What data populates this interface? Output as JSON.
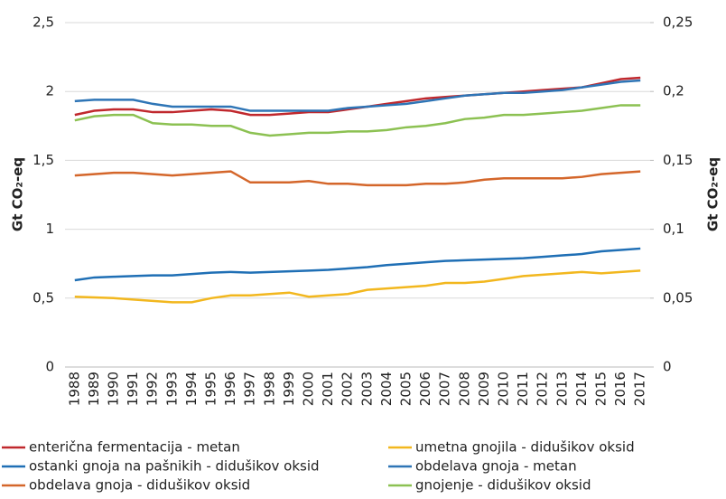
{
  "chart_data": {
    "type": "line",
    "y_label": "Gt CO₂-eq",
    "y2_label": "Gt CO₂-eq",
    "categories": [
      "1988",
      "1989",
      "1990",
      "1991",
      "1992",
      "1993",
      "1994",
      "1995",
      "1996",
      "1997",
      "1998",
      "1999",
      "2000",
      "2001",
      "2002",
      "2003",
      "2004",
      "2005",
      "2006",
      "2007",
      "2008",
      "2009",
      "2010",
      "2011",
      "2012",
      "2013",
      "2014",
      "2015",
      "2016",
      "2017"
    ],
    "series": [
      {
        "name": "enterična fermentacija - metan",
        "color": "#c0282d",
        "values": [
          1.83,
          1.86,
          1.87,
          1.87,
          1.85,
          1.85,
          1.86,
          1.87,
          1.86,
          1.83,
          1.83,
          1.84,
          1.85,
          1.85,
          1.87,
          1.89,
          1.91,
          1.93,
          1.95,
          1.96,
          1.97,
          1.98,
          1.99,
          2.0,
          2.01,
          2.02,
          2.03,
          2.06,
          2.09,
          2.1
        ]
      },
      {
        "name": "ostanki gnoja na pašnikih - didušikov oksid",
        "color": "#1f6fb5",
        "values": [
          0.63,
          0.65,
          0.655,
          0.66,
          0.665,
          0.665,
          0.675,
          0.685,
          0.69,
          0.685,
          0.69,
          0.695,
          0.7,
          0.705,
          0.715,
          0.725,
          0.74,
          0.75,
          0.76,
          0.77,
          0.775,
          0.78,
          0.785,
          0.79,
          0.8,
          0.81,
          0.82,
          0.84,
          0.85,
          0.86
        ]
      },
      {
        "name": "obdelava gnoja - didušikov oksid",
        "color": "#d4662a",
        "values": [
          1.39,
          1.4,
          1.41,
          1.41,
          1.4,
          1.39,
          1.4,
          1.41,
          1.42,
          1.34,
          1.34,
          1.34,
          1.35,
          1.33,
          1.33,
          1.32,
          1.32,
          1.32,
          1.33,
          1.33,
          1.34,
          1.36,
          1.37,
          1.37,
          1.37,
          1.37,
          1.38,
          1.4,
          1.41,
          1.42
        ]
      },
      {
        "name": "umetna gnojila - didušikov oksid",
        "color": "#f2b71e",
        "values": [
          0.51,
          0.505,
          0.5,
          0.49,
          0.48,
          0.47,
          0.47,
          0.5,
          0.52,
          0.52,
          0.53,
          0.54,
          0.51,
          0.52,
          0.53,
          0.56,
          0.57,
          0.58,
          0.59,
          0.61,
          0.61,
          0.62,
          0.64,
          0.66,
          0.67,
          0.68,
          0.69,
          0.68,
          0.69,
          0.7
        ]
      },
      {
        "name": "obdelava gnoja - metan",
        "color": "#2e75b6",
        "values": [
          1.93,
          1.94,
          1.94,
          1.94,
          1.91,
          1.89,
          1.89,
          1.89,
          1.89,
          1.86,
          1.86,
          1.86,
          1.86,
          1.86,
          1.88,
          1.89,
          1.9,
          1.91,
          1.93,
          1.95,
          1.97,
          1.98,
          1.99,
          1.99,
          2.0,
          2.01,
          2.03,
          2.05,
          2.07,
          2.08
        ]
      },
      {
        "name": "gnojenje - didušikov oksid",
        "color": "#8cc152",
        "values": [
          1.79,
          1.82,
          1.83,
          1.83,
          1.77,
          1.76,
          1.76,
          1.75,
          1.75,
          1.7,
          1.68,
          1.69,
          1.7,
          1.7,
          1.71,
          1.71,
          1.72,
          1.74,
          1.75,
          1.77,
          1.8,
          1.81,
          1.83,
          1.83,
          1.84,
          1.85,
          1.86,
          1.88,
          1.9,
          1.9
        ]
      }
    ],
    "ylim": [
      0,
      2.5
    ],
    "yticks": [
      0,
      {
        "value": 0.5,
        "label": "0,5"
      },
      1,
      {
        "value": 1.5,
        "label": "1,5"
      },
      2,
      {
        "value": 2.5,
        "label": "2,5"
      }
    ],
    "y2lim": [
      0,
      0.25
    ],
    "y2ticks": [
      0,
      {
        "value": 0.05,
        "label": "0,05"
      },
      {
        "value": 0.1,
        "label": "0,1"
      },
      {
        "value": 0.15,
        "label": "0,15"
      },
      {
        "value": 0.2,
        "label": "0,2"
      },
      {
        "value": 0.25,
        "label": "0,25"
      }
    ],
    "grid": true
  }
}
